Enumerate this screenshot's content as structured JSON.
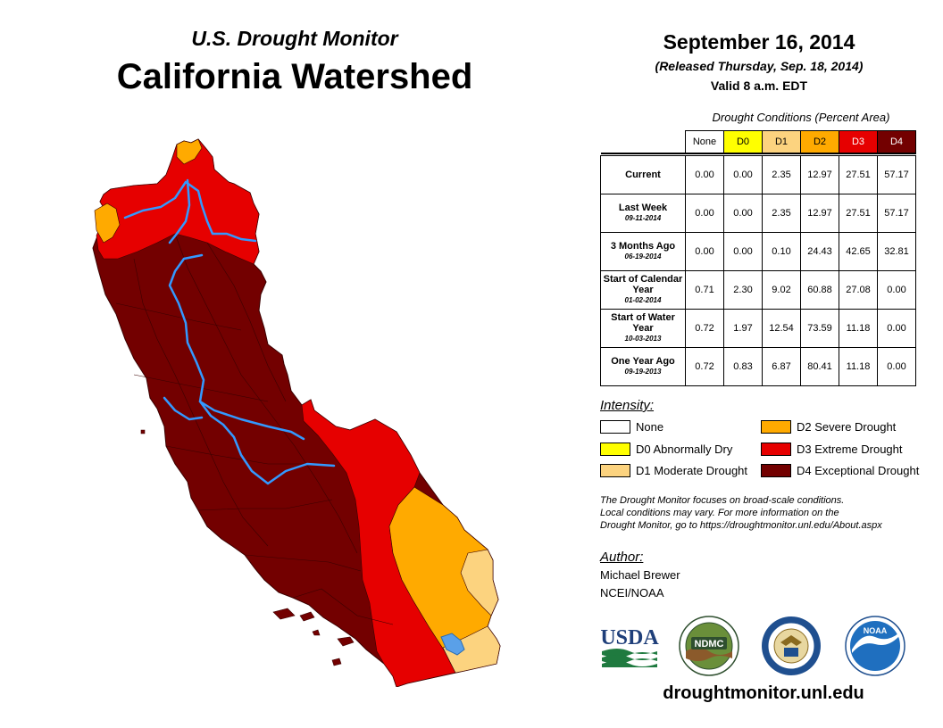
{
  "header": {
    "subtitle": "U.S. Drought Monitor",
    "title": "California Watershed",
    "date": "September 16, 2014",
    "released": "(Released Thursday, Sep. 18, 2014)",
    "valid": "Valid 8 a.m. EDT"
  },
  "table": {
    "caption": "Drought Conditions (Percent Area)",
    "columns": [
      "None",
      "D0",
      "D1",
      "D2",
      "D3",
      "D4"
    ],
    "rows": [
      {
        "label": "Current",
        "date": "",
        "values": [
          "0.00",
          "0.00",
          "2.35",
          "12.97",
          "27.51",
          "57.17"
        ]
      },
      {
        "label": "Last Week",
        "date": "09-11-2014",
        "values": [
          "0.00",
          "0.00",
          "2.35",
          "12.97",
          "27.51",
          "57.17"
        ]
      },
      {
        "label": "3 Months Ago",
        "date": "06-19-2014",
        "values": [
          "0.00",
          "0.00",
          "0.10",
          "24.43",
          "42.65",
          "32.81"
        ]
      },
      {
        "label": "Start of Calendar Year",
        "date": "01-02-2014",
        "values": [
          "0.71",
          "2.30",
          "9.02",
          "60.88",
          "27.08",
          "0.00"
        ]
      },
      {
        "label": "Start of Water Year",
        "date": "10-03-2013",
        "values": [
          "0.72",
          "1.97",
          "12.54",
          "73.59",
          "11.18",
          "0.00"
        ]
      },
      {
        "label": "One Year Ago",
        "date": "09-19-2013",
        "values": [
          "0.72",
          "0.83",
          "6.87",
          "80.41",
          "11.18",
          "0.00"
        ]
      }
    ]
  },
  "legend": {
    "title": "Intensity:",
    "items": {
      "none": "None",
      "d0": "D0 Abnormally Dry",
      "d1": "D1 Moderate Drought",
      "d2": "D2 Severe Drought",
      "d3": "D3 Extreme Drought",
      "d4": "D4 Exceptional Drought"
    }
  },
  "note": {
    "line1": "The Drought Monitor focuses on broad-scale conditions.",
    "line2": "Local conditions may vary. For more information on the",
    "line3": "Drought Monitor, go to https://droughtmonitor.unl.edu/About.aspx"
  },
  "author": {
    "label": "Author:",
    "name": "Michael Brewer",
    "org": "NCEI/NOAA"
  },
  "logos": {
    "usda": "USDA",
    "ndmc": "NDMC",
    "noaa": "NOAA"
  },
  "url": "droughtmonitor.unl.edu",
  "colors": {
    "none": "#ffffff",
    "d0": "#ffff00",
    "d1": "#fcd37f",
    "d2": "#ffaa00",
    "d3": "#e60000",
    "d4": "#730000",
    "river": "#3399ff"
  }
}
